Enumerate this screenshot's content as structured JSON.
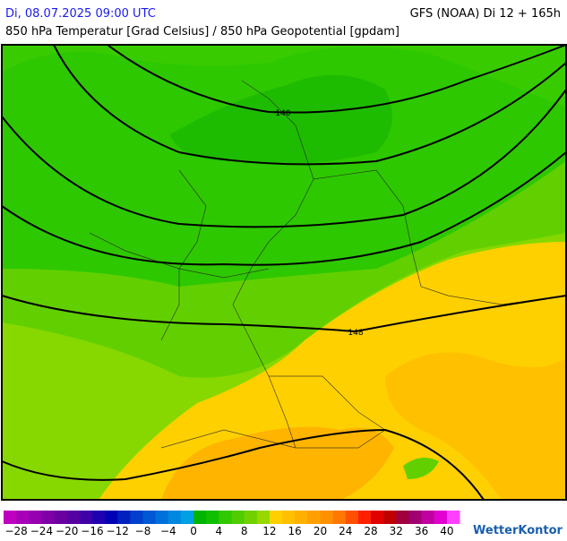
{
  "header": {
    "datetime": "Di, 08.07.2025 09:00 UTC",
    "model": "GFS (NOAA) Di 12 + 165h",
    "subtitle": "850 hPa Temperatur [Grad Celsius] / 850 hPa Geopotential [gpdam]"
  },
  "map": {
    "contour_labels": [
      "140",
      "148"
    ]
  },
  "legend": {
    "ticks": [
      "−28",
      "−24",
      "−20",
      "−16",
      "−12",
      "−8",
      "−4",
      "0",
      "4",
      "8",
      "12",
      "16",
      "20",
      "24",
      "28",
      "32",
      "36",
      "40"
    ],
    "colors": [
      "#c000c0",
      "#a800b8",
      "#9600b0",
      "#8000a8",
      "#6a00a0",
      "#5500a0",
      "#4000a8",
      "#2000b0",
      "#0000b4",
      "#0020c0",
      "#0040cc",
      "#0058d4",
      "#0070dc",
      "#0088e0",
      "#00a0e4",
      "#00b400",
      "#10c000",
      "#30c800",
      "#50cc00",
      "#70d000",
      "#96d800",
      "#ffd000",
      "#ffc000",
      "#ffb000",
      "#ffa000",
      "#ff9000",
      "#ff7800",
      "#ff5000",
      "#ff2000",
      "#e00000",
      "#c00000",
      "#a0003c",
      "#a00070",
      "#c000a0",
      "#e000d0",
      "#ff40ff"
    ]
  },
  "brand": "WetterKontor"
}
